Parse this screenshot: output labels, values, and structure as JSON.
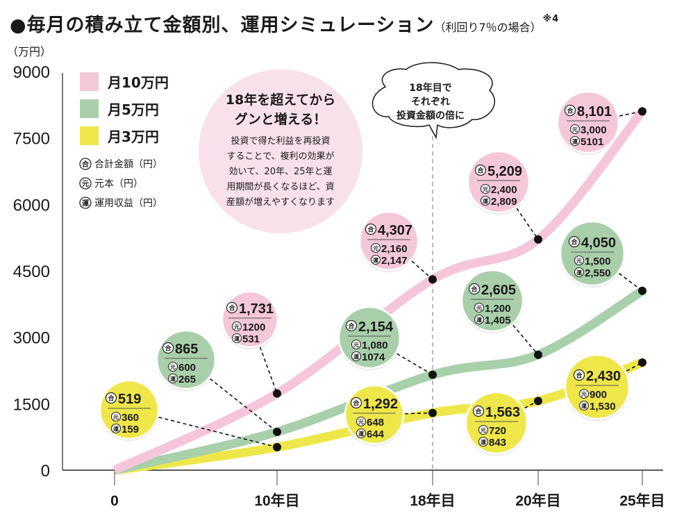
{
  "title": {
    "bullet": "●",
    "main": "毎月の積み立て金額別、運用シミュレーション",
    "sub": "（利回り7％の場合）",
    "note": "※4"
  },
  "colors": {
    "pink": "#f4c7d9",
    "pink_line": "#f5c6d9",
    "green": "#a9cfaa",
    "green_line": "#a8d0ab",
    "yellow": "#efe649",
    "yellow_line": "#eee74a",
    "note_bubble": "#f8e1ea",
    "dot": "#111111"
  },
  "legend": {
    "series": [
      {
        "label": "月10万円",
        "color_key": "pink"
      },
      {
        "label": "月5万円",
        "color_key": "green"
      },
      {
        "label": "月3万円",
        "color_key": "yellow"
      }
    ],
    "keys": [
      {
        "symbol": "合",
        "label": "合計金額（円）"
      },
      {
        "symbol": "元",
        "label": "元本（円）"
      },
      {
        "symbol": "運",
        "label": "運用収益（円）"
      }
    ]
  },
  "note_circle": {
    "heading": [
      "18年を超えてから",
      "グンと増える！"
    ],
    "body": [
      "投資で得た利益を再投資",
      "することで、複利の効果が",
      "効いて、20年、25年と運",
      "用期間が長くなるほど、資",
      "産額が増えやすくなります"
    ]
  },
  "cloud_note": {
    "lines": [
      "18年目で",
      "それぞれ",
      "投資金額の倍に"
    ]
  },
  "chart_data": {
    "type": "line",
    "title": "毎月の積み立て金額別、運用シミュレーション（利回り7％の場合）",
    "xlabel": "",
    "ylabel": "（万円）",
    "x": [
      0,
      10,
      18,
      20,
      25
    ],
    "x_tick_labels": [
      "0",
      "10年目",
      "18年目",
      "20年目",
      "25年目"
    ],
    "y_ticks": [
      0,
      1500,
      3000,
      4500,
      6000,
      7500,
      9000
    ],
    "y_tick_labels": [
      "0",
      "1500",
      "3000",
      "4500",
      "6000",
      "7500",
      "9000"
    ],
    "ylim": [
      0,
      9000
    ],
    "grid": false,
    "legend_position": "top-left",
    "reference_line_x": 18,
    "series": [
      {
        "name": "月10万円",
        "color_key": "pink",
        "values": [
          0,
          1731,
          4307,
          5209,
          8101
        ],
        "labels": [
          null,
          {
            "total": "1,731",
            "principal": "1200",
            "gain": "531"
          },
          {
            "total": "4,307",
            "principal": "2,160",
            "gain": "2,147"
          },
          {
            "total": "5,209",
            "principal": "2,400",
            "gain": "2,809"
          },
          {
            "total": "8,101",
            "principal": "3,000",
            "gain": "5101"
          }
        ]
      },
      {
        "name": "月5万円",
        "color_key": "green",
        "values": [
          0,
          865,
          2154,
          2605,
          4050
        ],
        "labels": [
          null,
          {
            "total": "865",
            "principal": "600",
            "gain": "265"
          },
          {
            "total": "2,154",
            "principal": "1,080",
            "gain": "1074"
          },
          {
            "total": "2,605",
            "principal": "1,200",
            "gain": "1,405"
          },
          {
            "total": "4,050",
            "principal": "1,500",
            "gain": "2,550"
          }
        ]
      },
      {
        "name": "月3万円",
        "color_key": "yellow",
        "values": [
          0,
          519,
          1292,
          1563,
          2430
        ],
        "labels": [
          null,
          {
            "total": "519",
            "principal": "360",
            "gain": "159"
          },
          {
            "total": "1,292",
            "principal": "648",
            "gain": "644"
          },
          {
            "total": "1,563",
            "principal": "720",
            "gain": "843"
          },
          {
            "total": "2,430",
            "principal": "900",
            "gain": "1,530"
          }
        ]
      }
    ]
  }
}
